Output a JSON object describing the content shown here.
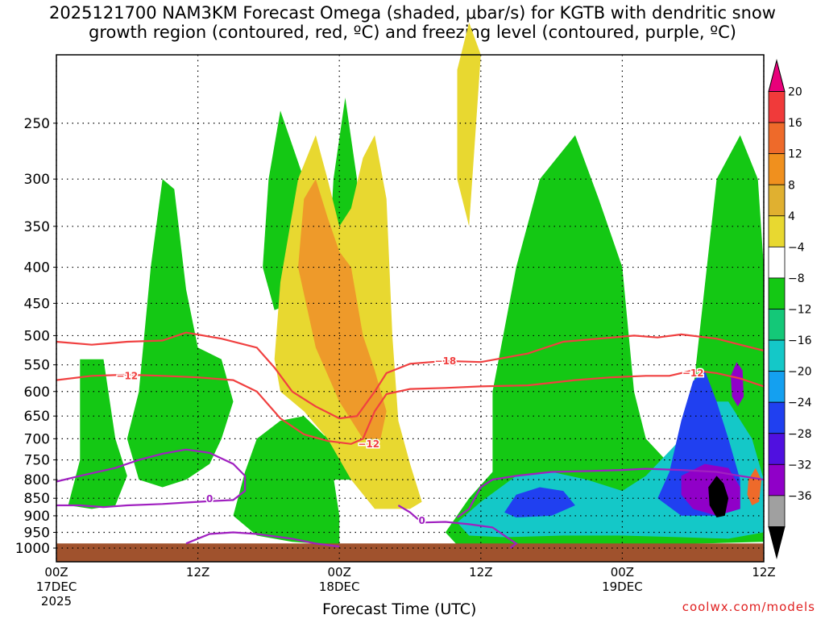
{
  "title": {
    "line1": "2025121700 NAM3KM Forecast Omega (shaded, μbar/s) for KGTB with dendritic snow",
    "line2": "growth region (contoured, red, ºC) and freezing level (contoured, purple, ºC)"
  },
  "credit": "coolwx.com/models",
  "chart_data": {
    "type": "heatmap",
    "title": "2025121700 NAM3KM Forecast Omega (shaded, μbar/s) for KGTB with dendritic snow growth region (contoured, red, ºC) and freezing level (contoured, purple, ºC)",
    "xlabel": "Forecast Time (UTC)",
    "ylabel": "",
    "x_range_hours": [
      0,
      60
    ],
    "y_range_hPa": [
      1000,
      200
    ],
    "y_scale": "log-pressure",
    "grid": true,
    "x_ticks": [
      {
        "hour": 0,
        "lines": [
          "00Z",
          "17DEC",
          "2025"
        ]
      },
      {
        "hour": 12,
        "lines": [
          "12Z"
        ]
      },
      {
        "hour": 24,
        "lines": [
          "00Z",
          "18DEC"
        ]
      },
      {
        "hour": 36,
        "lines": [
          "12Z"
        ]
      },
      {
        "hour": 48,
        "lines": [
          "00Z",
          "19DEC"
        ]
      },
      {
        "hour": 60,
        "lines": [
          "12Z"
        ]
      }
    ],
    "y_ticks": [
      250,
      300,
      350,
      400,
      450,
      500,
      550,
      600,
      650,
      700,
      750,
      800,
      850,
      900,
      950,
      1000
    ],
    "colorbar": {
      "labels": [
        "20",
        "16",
        "12",
        "8",
        "4",
        "−4",
        "−8",
        "−12",
        "−16",
        "−20",
        "−24",
        "−28",
        "−32",
        "−36"
      ],
      "colors": [
        "#e8007a",
        "#f03a3a",
        "#ee6a2a",
        "#f0901e",
        "#e0b030",
        "#e8d830",
        "#ffffff",
        "#14c814",
        "#14c878",
        "#14c8c8",
        "#14a0f0",
        "#2040f0",
        "#5010e0",
        "#9000c8",
        "#a0a0a0",
        "#000000"
      ]
    },
    "contours": [
      {
        "name": "-18",
        "color": "#f04040",
        "points": [
          [
            0,
            510
          ],
          [
            3,
            515
          ],
          [
            6,
            510
          ],
          [
            9,
            508
          ],
          [
            11,
            495
          ],
          [
            14,
            505
          ],
          [
            17,
            520
          ],
          [
            18.5,
            555
          ],
          [
            20,
            600
          ],
          [
            22,
            630
          ],
          [
            24,
            655
          ],
          [
            25.5,
            650
          ],
          [
            27,
            600
          ],
          [
            28,
            565
          ],
          [
            30,
            548
          ],
          [
            33,
            543
          ],
          [
            36,
            545
          ],
          [
            40,
            530
          ],
          [
            43,
            510
          ],
          [
            46,
            505
          ],
          [
            49,
            500
          ],
          [
            51,
            503
          ],
          [
            53,
            498
          ],
          [
            56,
            505
          ],
          [
            58,
            515
          ],
          [
            60,
            525
          ]
        ]
      },
      {
        "name": "-12",
        "color": "#f04040",
        "points": [
          [
            0,
            578
          ],
          [
            3,
            570
          ],
          [
            6,
            568
          ],
          [
            9,
            570
          ],
          [
            12,
            573
          ],
          [
            15,
            578
          ],
          [
            17,
            600
          ],
          [
            19,
            655
          ],
          [
            21,
            690
          ],
          [
            23,
            705
          ],
          [
            25,
            712
          ],
          [
            26,
            700
          ],
          [
            27,
            640
          ],
          [
            28,
            605
          ],
          [
            30,
            595
          ],
          [
            33,
            593
          ],
          [
            36,
            590
          ],
          [
            40,
            588
          ],
          [
            44,
            578
          ],
          [
            47,
            573
          ],
          [
            50,
            570
          ],
          [
            52,
            570
          ],
          [
            54,
            560
          ],
          [
            56,
            565
          ],
          [
            58,
            575
          ],
          [
            60,
            590
          ]
        ]
      },
      {
        "name": "0",
        "color": "#a020c0",
        "points": [
          [
            0,
            805
          ],
          [
            2,
            790
          ],
          [
            5,
            770
          ],
          [
            7,
            750
          ],
          [
            9,
            735
          ],
          [
            11,
            725
          ],
          [
            13,
            733
          ],
          [
            15,
            760
          ],
          [
            16,
            790
          ],
          [
            16,
            830
          ],
          [
            15,
            855
          ],
          [
            13,
            858
          ],
          [
            11,
            862
          ],
          [
            9,
            866
          ],
          [
            6,
            870
          ],
          [
            4,
            875
          ],
          [
            2,
            870
          ],
          [
            0,
            870
          ]
        ]
      },
      {
        "name": "0b",
        "color": "#a020c0",
        "points": [
          [
            11,
            985
          ],
          [
            13,
            955
          ],
          [
            15,
            950
          ],
          [
            17,
            955
          ],
          [
            20,
            970
          ],
          [
            22,
            985
          ],
          [
            24,
            995
          ]
        ]
      },
      {
        "name": "0c",
        "color": "#a020c0",
        "points": [
          [
            29,
            870
          ],
          [
            30,
            890
          ],
          [
            31,
            920
          ],
          [
            33,
            918
          ],
          [
            35,
            925
          ],
          [
            37,
            935
          ],
          [
            38,
            960
          ],
          [
            39,
            985
          ],
          [
            38.5,
            1000
          ]
        ]
      },
      {
        "name": "0d",
        "color": "#a020c0",
        "points": [
          [
            34,
            905
          ],
          [
            35,
            880
          ],
          [
            36,
            820
          ],
          [
            37,
            800
          ],
          [
            39,
            790
          ],
          [
            42,
            780
          ],
          [
            45,
            778
          ],
          [
            48,
            775
          ],
          [
            50,
            772
          ],
          [
            53,
            775
          ],
          [
            56,
            780
          ],
          [
            58,
            790
          ],
          [
            60,
            800
          ]
        ]
      }
    ],
    "contour_labels": [
      {
        "text": "−18",
        "hour": 33,
        "p": 543
      },
      {
        "text": "−12",
        "hour": 6,
        "p": 570
      },
      {
        "text": "−12",
        "hour": 26.5,
        "p": 712
      },
      {
        "text": "−12",
        "hour": 54,
        "p": 565
      },
      {
        "text": "0",
        "hour": 13,
        "p": 852
      },
      {
        "text": "0",
        "hour": 31,
        "p": 915
      }
    ],
    "omega_regions": [
      {
        "level": "green",
        "points": [
          [
            7,
            600
          ],
          [
            8,
            400
          ],
          [
            9,
            300
          ],
          [
            10,
            310
          ],
          [
            11,
            430
          ],
          [
            12,
            520
          ],
          [
            14,
            540
          ],
          [
            15,
            620
          ],
          [
            14,
            700
          ],
          [
            13,
            760
          ],
          [
            11,
            800
          ],
          [
            9,
            820
          ],
          [
            7,
            800
          ],
          [
            6,
            700
          ]
        ]
      },
      {
        "level": "green",
        "points": [
          [
            2,
            540
          ],
          [
            4,
            540
          ],
          [
            5,
            700
          ],
          [
            6,
            790
          ],
          [
            5,
            870
          ],
          [
            3,
            880
          ],
          [
            1,
            870
          ],
          [
            2,
            750
          ]
        ]
      },
      {
        "level": "green",
        "points": [
          [
            16,
            780
          ],
          [
            17,
            700
          ],
          [
            19,
            660
          ],
          [
            21,
            650
          ],
          [
            23,
            700
          ],
          [
            24,
            900
          ],
          [
            24,
            990
          ],
          [
            20,
            980
          ],
          [
            17,
            960
          ],
          [
            15,
            900
          ]
        ]
      },
      {
        "level": "green",
        "points": [
          [
            17.5,
            400
          ],
          [
            18,
            300
          ],
          [
            19,
            240
          ],
          [
            21,
            300
          ],
          [
            21,
            400
          ],
          [
            20,
            450
          ],
          [
            18.5,
            460
          ]
        ]
      },
      {
        "level": "green",
        "points": [
          [
            22.5,
            600
          ],
          [
            23.5,
            300
          ],
          [
            24.5,
            230
          ],
          [
            25.5,
            300
          ],
          [
            26,
            600
          ],
          [
            25,
            800
          ],
          [
            23,
            800
          ]
        ]
      },
      {
        "level": "green",
        "points": [
          [
            37,
            600
          ],
          [
            39,
            400
          ],
          [
            41,
            300
          ],
          [
            44,
            260
          ],
          [
            46,
            320
          ],
          [
            48,
            400
          ],
          [
            49,
            600
          ],
          [
            50,
            700
          ],
          [
            52,
            760
          ],
          [
            54,
            600
          ],
          [
            56,
            300
          ],
          [
            58,
            260
          ],
          [
            59.5,
            300
          ],
          [
            60,
            400
          ],
          [
            60,
            980
          ],
          [
            55,
            985
          ],
          [
            48,
            990
          ],
          [
            40,
            995
          ],
          [
            34,
            990
          ],
          [
            33,
            950
          ],
          [
            35,
            850
          ],
          [
            37,
            780
          ]
        ]
      },
      {
        "level": "yellow",
        "points": [
          [
            18.5,
            540
          ],
          [
            19,
            420
          ],
          [
            20.5,
            300
          ],
          [
            22,
            260
          ],
          [
            23,
            300
          ],
          [
            24,
            350
          ],
          [
            25,
            330
          ],
          [
            26,
            280
          ],
          [
            27,
            260
          ],
          [
            28,
            320
          ],
          [
            28.5,
            500
          ],
          [
            29,
            660
          ],
          [
            30,
            760
          ],
          [
            31,
            860
          ],
          [
            30,
            880
          ],
          [
            27,
            880
          ],
          [
            25,
            800
          ],
          [
            23,
            700
          ],
          [
            21,
            640
          ],
          [
            19,
            600
          ]
        ]
      },
      {
        "level": "orange",
        "points": [
          [
            20.5,
            400
          ],
          [
            21,
            320
          ],
          [
            22,
            300
          ],
          [
            23,
            340
          ],
          [
            24,
            380
          ],
          [
            25,
            400
          ],
          [
            26,
            500
          ],
          [
            27,
            560
          ],
          [
            28,
            640
          ],
          [
            27.5,
            700
          ],
          [
            26,
            700
          ],
          [
            24,
            620
          ],
          [
            22,
            520
          ]
        ]
      },
      {
        "level": "yellow",
        "points": [
          [
            34,
            210
          ],
          [
            35,
            180
          ],
          [
            36,
            200
          ],
          [
            35,
            350
          ],
          [
            34,
            300
          ]
        ]
      },
      {
        "level": "teal",
        "points": [
          [
            36,
            860
          ],
          [
            39,
            790
          ],
          [
            42,
            780
          ],
          [
            45,
            800
          ],
          [
            48,
            830
          ],
          [
            50,
            790
          ],
          [
            53,
            700
          ],
          [
            55,
            620
          ],
          [
            57,
            620
          ],
          [
            59,
            700
          ],
          [
            60,
            800
          ],
          [
            60,
            950
          ],
          [
            57,
            970
          ],
          [
            53,
            965
          ],
          [
            48,
            960
          ],
          [
            43,
            960
          ],
          [
            38,
            965
          ],
          [
            35,
            960
          ],
          [
            34,
            920
          ]
        ]
      },
      {
        "level": "blue",
        "points": [
          [
            38,
            890
          ],
          [
            39,
            840
          ],
          [
            41,
            820
          ],
          [
            43,
            830
          ],
          [
            44,
            870
          ],
          [
            42,
            900
          ],
          [
            39,
            905
          ]
        ]
      },
      {
        "level": "blue",
        "points": [
          [
            52,
            780
          ],
          [
            53,
            660
          ],
          [
            54,
            580
          ],
          [
            55,
            560
          ],
          [
            56,
            620
          ],
          [
            57,
            700
          ],
          [
            58,
            800
          ],
          [
            58,
            880
          ],
          [
            56,
            900
          ],
          [
            53,
            900
          ],
          [
            51,
            850
          ]
        ]
      },
      {
        "level": "purple",
        "points": [
          [
            53,
            790
          ],
          [
            55,
            760
          ],
          [
            57,
            770
          ],
          [
            58,
            820
          ],
          [
            58,
            880
          ],
          [
            56,
            900
          ],
          [
            54,
            880
          ],
          [
            53,
            840
          ]
        ]
      },
      {
        "level": "black",
        "points": [
          [
            55.3,
            820
          ],
          [
            56,
            790
          ],
          [
            56.6,
            810
          ],
          [
            57,
            850
          ],
          [
            56.7,
            900
          ],
          [
            56,
            905
          ],
          [
            55.4,
            870
          ]
        ]
      },
      {
        "level": "purple",
        "points": [
          [
            57.2,
            570
          ],
          [
            57.7,
            545
          ],
          [
            58.2,
            560
          ],
          [
            58.3,
            610
          ],
          [
            57.8,
            630
          ],
          [
            57.3,
            610
          ]
        ]
      },
      {
        "level": "red",
        "points": [
          [
            58.7,
            800
          ],
          [
            59.3,
            770
          ],
          [
            59.8,
            800
          ],
          [
            59.6,
            860
          ],
          [
            59,
            870
          ],
          [
            58.6,
            840
          ]
        ]
      }
    ],
    "terrain_p": 985
  },
  "xaxis_title": "Forecast Time (UTC)"
}
